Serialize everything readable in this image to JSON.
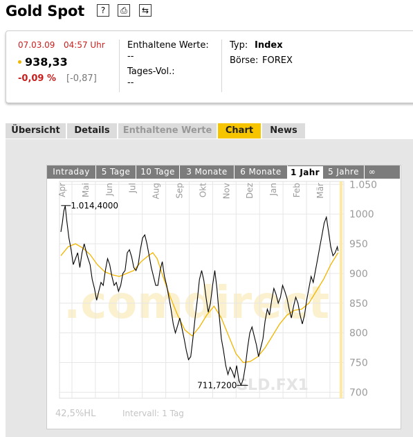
{
  "page": {
    "title": "Gold Spot"
  },
  "toolbar": [
    {
      "icon": "help-icon",
      "glyph": "?"
    },
    {
      "icon": "print-icon",
      "glyph": "⎙"
    },
    {
      "icon": "refresh-icon",
      "glyph": "⇆"
    }
  ],
  "quote": {
    "date": "07.03.09",
    "time": "04:57 Uhr",
    "price": "938,33",
    "change_pct": "-0,09 %",
    "change_abs": "[-0,87]",
    "constituents_label": "Enthaltene Werte:",
    "constituents_value": "--",
    "volume_label": "Tages-Vol.:",
    "volume_value": "--",
    "type_label": "Typ:",
    "type_value": "Index",
    "exchange_label": "Börse:",
    "exchange_value": "FOREX"
  },
  "tabs": [
    {
      "label": "Übersicht",
      "state": "normal"
    },
    {
      "label": "Details",
      "state": "normal"
    },
    {
      "label": "Enthaltene Werte",
      "state": "disabled"
    },
    {
      "label": "Chart",
      "state": "active"
    },
    {
      "label": "News",
      "state": "normal"
    }
  ],
  "range_tabs": [
    "Intraday",
    "5 Tage",
    "10 Tage",
    "3 Monate",
    "6 Monate",
    "1 Jahr",
    "5 Jahre",
    "∞"
  ],
  "range_active": "1 Jahr",
  "chart_data": {
    "type": "line",
    "watermark": ".comdirect",
    "symbol": "GLD.FX1",
    "ylim": [
      690,
      1055
    ],
    "yticks": [
      1050,
      1000,
      950,
      900,
      850,
      800,
      750,
      700
    ],
    "xticks": [
      "Apr",
      "Mai",
      "Jun",
      "Jul",
      "Aug",
      "Sep",
      "Okt",
      "Nov",
      "Dez",
      "Jan",
      "Feb",
      "Mär"
    ],
    "grid": true,
    "annotations": [
      {
        "text": "1.014,4000",
        "value": 1014.4
      },
      {
        "text": "711,7200",
        "value": 711.72
      }
    ],
    "footer_left": "42,5%HL",
    "footer_right": "Intervall: 1 Tag",
    "colors": {
      "price": "#000000",
      "average": "#f2b500",
      "current_marker": "#ffe9a0"
    },
    "series": [
      {
        "values": [
          [
            0,
            970
          ],
          [
            0.1,
            985
          ],
          [
            0.2,
            1005
          ],
          [
            0.3,
            1014
          ],
          [
            0.4,
            990
          ],
          [
            0.55,
            960
          ],
          [
            0.7,
            940
          ],
          [
            0.85,
            915
          ],
          [
            1.0,
            925
          ],
          [
            1.15,
            935
          ],
          [
            1.3,
            910
          ],
          [
            1.45,
            935
          ],
          [
            1.6,
            950
          ],
          [
            1.8,
            930
          ],
          [
            2.0,
            915
          ],
          [
            2.15,
            890
          ],
          [
            2.3,
            875
          ],
          [
            2.45,
            855
          ],
          [
            2.6,
            870
          ],
          [
            2.75,
            885
          ],
          [
            2.9,
            880
          ],
          [
            3.05,
            905
          ],
          [
            3.2,
            925
          ],
          [
            3.35,
            915
          ],
          [
            3.5,
            895
          ],
          [
            3.65,
            880
          ],
          [
            3.8,
            885
          ],
          [
            3.95,
            870
          ],
          [
            4.1,
            880
          ],
          [
            4.25,
            900
          ],
          [
            4.4,
            905
          ],
          [
            4.55,
            935
          ],
          [
            4.7,
            940
          ],
          [
            4.85,
            928
          ],
          [
            5.0,
            910
          ],
          [
            5.15,
            905
          ],
          [
            5.3,
            915
          ],
          [
            5.45,
            940
          ],
          [
            5.6,
            960
          ],
          [
            5.75,
            965
          ],
          [
            5.9,
            950
          ],
          [
            6.05,
            930
          ],
          [
            6.2,
            910
          ],
          [
            6.35,
            895
          ],
          [
            6.5,
            880
          ],
          [
            6.65,
            880
          ],
          [
            6.8,
            905
          ],
          [
            6.95,
            920
          ],
          [
            7.1,
            895
          ],
          [
            7.25,
            880
          ],
          [
            7.4,
            860
          ],
          [
            7.55,
            840
          ],
          [
            7.7,
            815
          ],
          [
            7.85,
            800
          ],
          [
            8.0,
            812
          ],
          [
            8.15,
            825
          ],
          [
            8.3,
            808
          ],
          [
            8.45,
            790
          ],
          [
            8.6,
            770
          ],
          [
            8.75,
            755
          ],
          [
            8.9,
            760
          ],
          [
            9.05,
            790
          ],
          [
            9.2,
            825
          ],
          [
            9.35,
            855
          ],
          [
            9.5,
            890
          ],
          [
            9.65,
            905
          ],
          [
            9.8,
            888
          ],
          [
            9.95,
            860
          ],
          [
            10.1,
            835
          ],
          [
            10.25,
            850
          ],
          [
            10.4,
            880
          ],
          [
            10.55,
            905
          ],
          [
            10.7,
            875
          ],
          [
            10.85,
            830
          ],
          [
            11.0,
            790
          ],
          [
            11.15,
            770
          ],
          [
            11.3,
            745
          ],
          [
            11.45,
            730
          ],
          [
            11.6,
            742
          ],
          [
            11.75,
            735
          ],
          [
            11.9,
            725
          ],
          [
            12.05,
            745
          ],
          [
            12.2,
            720
          ],
          [
            12.35,
            712
          ],
          [
            12.5,
            722
          ],
          [
            12.65,
            745
          ],
          [
            12.8,
            775
          ],
          [
            12.95,
            800
          ],
          [
            13.1,
            810
          ],
          [
            13.25,
            795
          ],
          [
            13.4,
            780
          ],
          [
            13.55,
            760
          ],
          [
            13.7,
            775
          ],
          [
            13.85,
            790
          ],
          [
            14.0,
            820
          ],
          [
            14.15,
            840
          ],
          [
            14.3,
            830
          ],
          [
            14.45,
            855
          ],
          [
            14.6,
            875
          ],
          [
            14.75,
            865
          ],
          [
            14.9,
            850
          ],
          [
            15.05,
            860
          ],
          [
            15.2,
            880
          ],
          [
            15.35,
            870
          ],
          [
            15.5,
            858
          ],
          [
            15.65,
            840
          ],
          [
            15.8,
            825
          ],
          [
            15.95,
            845
          ],
          [
            16.1,
            860
          ],
          [
            16.25,
            850
          ],
          [
            16.4,
            830
          ],
          [
            16.55,
            815
          ],
          [
            16.7,
            830
          ],
          [
            16.85,
            855
          ],
          [
            17.0,
            875
          ],
          [
            17.15,
            895
          ],
          [
            17.3,
            885
          ],
          [
            17.45,
            905
          ],
          [
            17.6,
            925
          ],
          [
            17.75,
            945
          ],
          [
            17.9,
            965
          ],
          [
            18.05,
            985
          ],
          [
            18.2,
            995
          ],
          [
            18.35,
            970
          ],
          [
            18.5,
            945
          ],
          [
            18.65,
            930
          ],
          [
            18.8,
            935
          ],
          [
            18.95,
            945
          ],
          [
            19.0,
            938
          ]
        ]
      },
      {
        "values": [
          [
            0,
            930
          ],
          [
            0.5,
            945
          ],
          [
            1.0,
            950
          ],
          [
            1.5,
            943
          ],
          [
            2.0,
            932
          ],
          [
            2.5,
            915
          ],
          [
            3.0,
            903
          ],
          [
            3.5,
            898
          ],
          [
            4.0,
            895
          ],
          [
            4.5,
            900
          ],
          [
            5.0,
            905
          ],
          [
            5.5,
            920
          ],
          [
            6.0,
            930
          ],
          [
            6.3,
            935
          ],
          [
            6.6,
            925
          ],
          [
            7.0,
            895
          ],
          [
            7.5,
            860
          ],
          [
            8.0,
            830
          ],
          [
            8.5,
            805
          ],
          [
            9.0,
            795
          ],
          [
            9.5,
            810
          ],
          [
            10.0,
            830
          ],
          [
            10.5,
            845
          ],
          [
            11.0,
            825
          ],
          [
            11.5,
            795
          ],
          [
            12.0,
            765
          ],
          [
            12.5,
            750
          ],
          [
            13.0,
            752
          ],
          [
            13.5,
            760
          ],
          [
            14.0,
            775
          ],
          [
            14.5,
            795
          ],
          [
            15.0,
            815
          ],
          [
            15.5,
            830
          ],
          [
            16.0,
            838
          ],
          [
            16.5,
            840
          ],
          [
            17.0,
            850
          ],
          [
            17.5,
            870
          ],
          [
            18.0,
            890
          ],
          [
            18.5,
            915
          ],
          [
            19.0,
            935
          ]
        ]
      }
    ]
  }
}
